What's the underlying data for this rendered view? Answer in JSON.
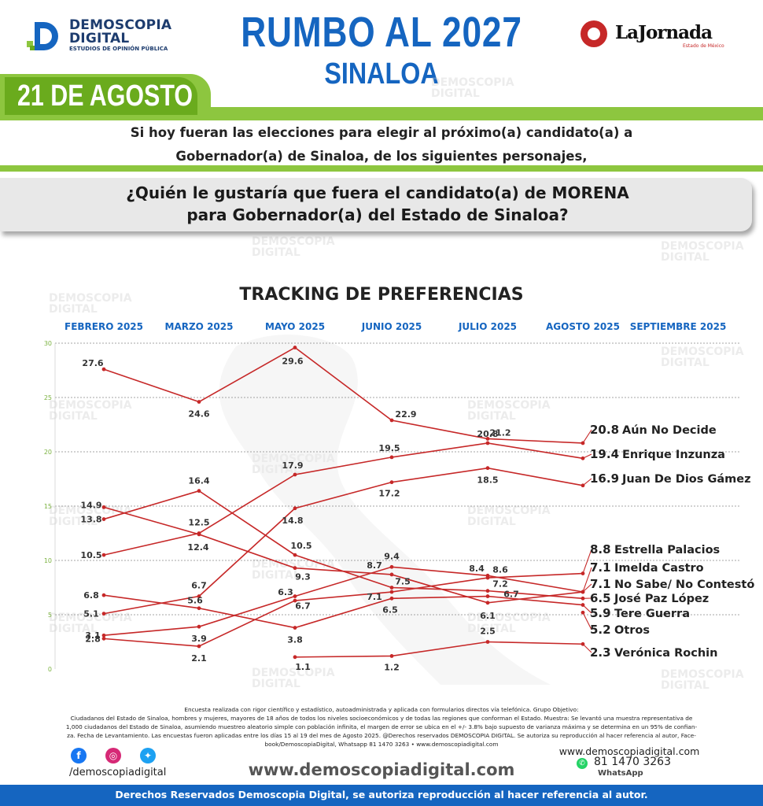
{
  "header": {
    "logo_title_1": "DEMOSCOPIA",
    "logo_title_2": "DIGITAL",
    "logo_subtitle": "ESTUDIOS DE OPINIÓN PÚBLICA",
    "title": "RUMBO AL 2027",
    "subtitle": "SINALOA",
    "partner_name": "LaJornada",
    "partner_sub": "Estado de México",
    "date": "21 DE AGOSTO"
  },
  "intro_line_1": "Si hoy fueran las elecciones para elegir al próximo(a) candidato(a) a",
  "intro_line_2": "Gobernador(a) de Sinaloa, de los siguientes personajes,",
  "question_line_1": "¿Quién le gustaría que fuera el candidato(a) de MORENA",
  "question_line_2": "para Gobernador(a) del Estado de Sinaloa?",
  "watermark": [
    "DEMOSCOPIA",
    "DIGITAL"
  ],
  "chart_data": {
    "type": "line",
    "title": "TRACKING DE PREFERENCIAS",
    "categories": [
      "FEBRERO 2025",
      "MARZO 2025",
      "MAYO 2025",
      "JUNIO 2025",
      "JULIO 2025",
      "AGOSTO 2025",
      "SEPTIEMBRE 2025"
    ],
    "ylim": [
      0,
      30
    ],
    "yticks": [
      0,
      5,
      10,
      15,
      20,
      25,
      30
    ],
    "grid": true,
    "line_color": "#c62828",
    "series": [
      {
        "name": "Aún No Decide",
        "values": [
          27.6,
          24.6,
          29.6,
          22.9,
          21.2,
          20.8,
          null
        ]
      },
      {
        "name": "Enrique Inzunza",
        "values": [
          10.5,
          12.5,
          17.9,
          19.5,
          20.8,
          19.4,
          null
        ]
      },
      {
        "name": "Juan De Dios Gámez",
        "values": [
          5.1,
          6.7,
          14.8,
          17.2,
          18.5,
          16.9,
          null
        ]
      },
      {
        "name": "Estrella Palacios",
        "values": [
          2.8,
          2.1,
          6.3,
          7.1,
          8.4,
          8.8,
          null
        ]
      },
      {
        "name": "Imelda Castro",
        "values": [
          3.1,
          3.9,
          6.7,
          9.4,
          8.6,
          7.1,
          null
        ]
      },
      {
        "name": "No Sabe/ No Contestó",
        "values": [
          14.9,
          12.4,
          9.3,
          8.7,
          6.1,
          7.1,
          null
        ]
      },
      {
        "name": "José Paz López",
        "values": [
          13.8,
          16.4,
          10.5,
          7.5,
          7.2,
          6.5,
          null
        ]
      },
      {
        "name": "Tere Guerra",
        "values": [
          6.8,
          5.6,
          3.8,
          6.5,
          6.7,
          5.9,
          null
        ]
      },
      {
        "name": "Otros",
        "values": [
          null,
          null,
          null,
          null,
          null,
          5.2,
          null
        ]
      },
      {
        "name": "Verónica Rochin",
        "values": [
          null,
          null,
          1.1,
          1.2,
          2.5,
          2.3,
          null
        ]
      }
    ]
  },
  "footer": {
    "methodology": [
      "Encuesta realizada con rigor científico y estadístico, autoadministrada y aplicada con formularios directos vía telefónica. Grupo Objetivo:",
      "Ciudadanos del Estado de Sinaloa, hombres y mujeres, mayores de 18 años de todos los niveles socioeconómicos y de todas las regiones que conforman el Estado. Muestra: Se levantó una muestra representativa de",
      "1,000 ciudadanos del Estado de Sinaloa, asumiendo muestreo aleatorio simple con población infinita, el margen de error se ubica en el +/- 3.8% bajo supuesto de varianza máxima y se determina en un 95% de confian-",
      "za. Fecha de Levantamiento. Las encuestas fueron aplicadas entre los días 15 al 19 del mes de Agosto 2025. @Derechos reservados DEMOSCOPIA DIGITAL. Se autoriza su reproducción al hacer referencia al autor, Face-",
      "book/DemoscopiaDigital, Whatsapp 81 1470 3263 • www.demoscopiadigital.com"
    ],
    "social_handle": "/demoscopiadigital",
    "website": "www.demoscopiadigital.com",
    "contact_site": "www.demoscopiadigital.com",
    "phone": "81 1470 3263",
    "whatsapp_label": "WhatsApp",
    "rights": "Derechos Reservados Demoscopia Digital, se autoriza reproducción al hacer referencia al autor."
  }
}
